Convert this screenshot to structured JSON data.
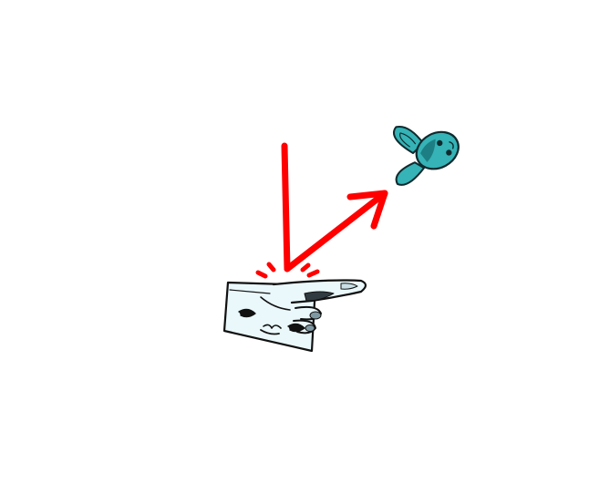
{
  "scene": {
    "background_color": "#ffffff",
    "launcher": {
      "name": "pointing-hand-launcher",
      "body_color": "#eaf8fb",
      "outline_color": "#111111",
      "cheek_color": "#8fb4c0"
    },
    "trajectory": {
      "color": "#ff0000",
      "segments": 2
    },
    "impact_sparks": {
      "color": "#ff0000",
      "count": 4
    },
    "target": {
      "name": "blue-bunny-head",
      "fill_color": "#35b3b6",
      "outline_color": "#0f2a2e"
    }
  }
}
